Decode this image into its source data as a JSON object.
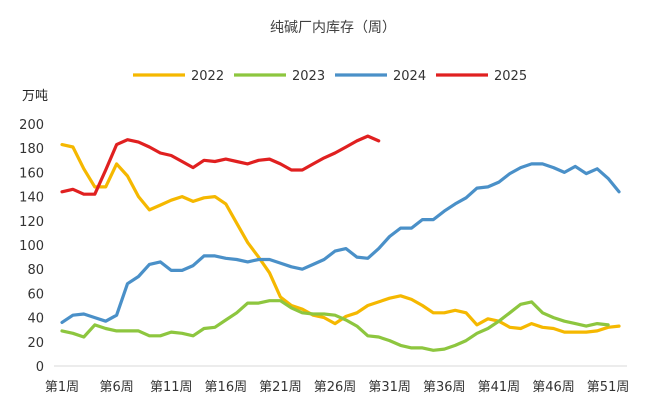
{
  "chart_data": {
    "type": "line",
    "title": "纯碱厂内库存（周）",
    "ylabel": "万吨",
    "xlabel": "",
    "ylim": [
      0,
      200
    ],
    "yticks": [
      0,
      20,
      40,
      60,
      80,
      100,
      120,
      140,
      160,
      180,
      200
    ],
    "x": [
      1,
      2,
      3,
      4,
      5,
      6,
      7,
      8,
      9,
      10,
      11,
      12,
      13,
      14,
      15,
      16,
      17,
      18,
      19,
      20,
      21,
      22,
      23,
      24,
      25,
      26,
      27,
      28,
      29,
      30,
      31,
      32,
      33,
      34,
      35,
      36,
      37,
      38,
      39,
      40,
      41,
      42,
      43,
      44,
      45,
      46,
      47,
      48,
      49,
      50,
      51,
      52,
      53
    ],
    "xticks": [
      1,
      6,
      11,
      16,
      21,
      26,
      31,
      36,
      41,
      46,
      51
    ],
    "xtick_labels": [
      "第1周",
      "第6周",
      "第11周",
      "第16周",
      "第21周",
      "第26周",
      "第31周",
      "第36周",
      "第41周",
      "第46周",
      "第51周"
    ],
    "legend_position": "top",
    "grid": false,
    "series": [
      {
        "name": "2022",
        "color": "#F5B800",
        "values": [
          183,
          181,
          163,
          148,
          148,
          167,
          157,
          140,
          129,
          133,
          137,
          140,
          136,
          139,
          140,
          134,
          118,
          102,
          90,
          77,
          57,
          50,
          47,
          42,
          40,
          35,
          41,
          44,
          50,
          53,
          56,
          58,
          55,
          50,
          44,
          44,
          46,
          44,
          34,
          39,
          37,
          32,
          31,
          35,
          32,
          31,
          28,
          28,
          28,
          29,
          32,
          33,
          null
        ]
      },
      {
        "name": "2023",
        "color": "#8DC63F",
        "values": [
          29,
          27,
          24,
          34,
          31,
          29,
          29,
          29,
          25,
          25,
          28,
          27,
          25,
          31,
          32,
          38,
          44,
          52,
          52,
          54,
          54,
          48,
          44,
          43,
          43,
          42,
          38,
          33,
          25,
          24,
          21,
          17,
          15,
          15,
          13,
          14,
          17,
          21,
          27,
          31,
          37,
          44,
          51,
          53,
          44,
          40,
          37,
          35,
          33,
          35,
          34,
          null,
          null
        ]
      },
      {
        "name": "2024",
        "color": "#4A90C8",
        "values": [
          36,
          42,
          43,
          40,
          37,
          42,
          68,
          74,
          84,
          86,
          79,
          79,
          83,
          91,
          91,
          89,
          88,
          86,
          88,
          88,
          85,
          82,
          80,
          84,
          88,
          95,
          97,
          90,
          89,
          97,
          107,
          114,
          114,
          121,
          121,
          128,
          134,
          139,
          147,
          148,
          152,
          159,
          164,
          167,
          167,
          164,
          160,
          165,
          159,
          163,
          155,
          144,
          null
        ]
      },
      {
        "name": "2025",
        "color": "#E02020",
        "values": [
          144,
          146,
          142,
          142,
          162,
          183,
          187,
          185,
          181,
          176,
          174,
          169,
          164,
          170,
          169,
          171,
          169,
          167,
          170,
          171,
          167,
          162,
          162,
          167,
          172,
          176,
          181,
          186,
          190,
          186,
          null,
          null,
          null,
          null,
          null,
          null,
          null,
          null,
          null,
          null,
          null,
          null,
          null,
          null,
          null,
          null,
          null,
          null,
          null,
          null,
          null,
          null,
          null
        ]
      }
    ]
  }
}
